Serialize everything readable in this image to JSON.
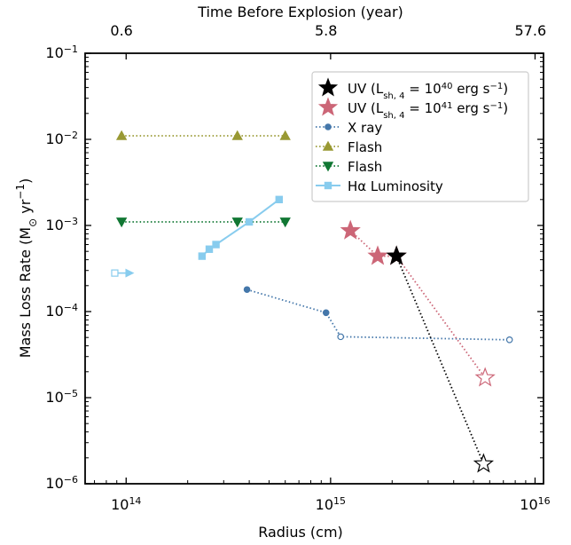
{
  "chart_data": {
    "type": "scatter",
    "title": "",
    "xlabel": "Radius (cm)",
    "ylabel": "Mass Loss Rate (M",
    "ylabel_sun": "⊙",
    "ylabel_unit": " yr",
    "ylabel_exp": "−1",
    "ylabel_close": ")",
    "top_xlabel": "Time Before Explosion (year)",
    "x_scale": "log",
    "y_scale": "log",
    "xlim": [
      63000000000000.0,
      1.1e+16
    ],
    "ylim": [
      1e-06,
      0.1
    ],
    "x_ticks": [
      {
        "value": 100000000000000.0,
        "base": "10",
        "exp": "14"
      },
      {
        "value": 1000000000000000.0,
        "base": "10",
        "exp": "15"
      },
      {
        "value": 1e+16,
        "base": "10",
        "exp": "16"
      }
    ],
    "y_ticks": [
      {
        "value": 0.1,
        "base": "10",
        "exp": "−1"
      },
      {
        "value": 0.01,
        "base": "10",
        "exp": "−2"
      },
      {
        "value": 0.001,
        "base": "10",
        "exp": "−3"
      },
      {
        "value": 0.0001,
        "base": "10",
        "exp": "−4"
      },
      {
        "value": 1e-05,
        "base": "10",
        "exp": "−5"
      },
      {
        "value": 1e-06,
        "base": "10",
        "exp": "−6"
      }
    ],
    "top_ticks": [
      {
        "label": "0.6",
        "x": 95000000000000.0
      },
      {
        "label": "5.8",
        "x": 950000000000000.0
      },
      {
        "label": "57.6",
        "x": 9500000000000000.0
      }
    ],
    "grid": false,
    "legend_position": "top-right",
    "legend": [
      {
        "label": "UV (L",
        "sub": "sh, 4",
        "mid": " = 10",
        "sup": "40",
        "tail": " erg s",
        "tail_sup": "−1",
        "end": ")",
        "marker": "star",
        "color": "#000000",
        "line": "none"
      },
      {
        "label": "UV (L",
        "sub": "sh, 4",
        "mid": " = 10",
        "sup": "41",
        "tail": " erg s",
        "tail_sup": "−1",
        "end": ")",
        "marker": "star",
        "color": "#cc6677",
        "line": "none"
      },
      {
        "label": "X ray",
        "marker": "circle",
        "color": "#4477aa",
        "line": "dotted"
      },
      {
        "label": "Flash",
        "marker": "triangle-up",
        "color": "#999933",
        "line": "dotted"
      },
      {
        "label": "Flash",
        "marker": "triangle-down",
        "color": "#117733",
        "line": "dotted"
      },
      {
        "label": "Hα Luminosity",
        "marker": "square",
        "color": "#88ccee",
        "line": "solid"
      }
    ],
    "series": [
      {
        "name": "Flash",
        "marker": "triangle-up",
        "color": "#999933",
        "line": "dotted",
        "points": [
          {
            "x": 95000000000000.0,
            "y": 0.011
          },
          {
            "x": 350000000000000.0,
            "y": 0.011
          },
          {
            "x": 600000000000000.0,
            "y": 0.011
          }
        ]
      },
      {
        "name": "Flash",
        "marker": "triangle-down",
        "color": "#117733",
        "line": "dotted",
        "points": [
          {
            "x": 95000000000000.0,
            "y": 0.0011
          },
          {
            "x": 350000000000000.0,
            "y": 0.0011
          },
          {
            "x": 600000000000000.0,
            "y": 0.0011
          }
        ]
      },
      {
        "name": "Hα Luminosity",
        "marker": "square",
        "color": "#88ccee",
        "line": "solid",
        "points": [
          {
            "x": 235000000000000.0,
            "y": 0.00044
          },
          {
            "x": 255000000000000.0,
            "y": 0.00053
          },
          {
            "x": 275000000000000.0,
            "y": 0.0006
          },
          {
            "x": 400000000000000.0,
            "y": 0.0011
          },
          {
            "x": 560000000000000.0,
            "y": 0.002
          }
        ]
      },
      {
        "name": "Hα Luminosity limit",
        "marker": "square-open-arrow",
        "color": "#88ccee",
        "line": "none",
        "points": [
          {
            "x": 88000000000000.0,
            "y": 0.00028
          }
        ]
      },
      {
        "name": "X ray",
        "marker": "circle",
        "color": "#4477aa",
        "line": "dotted",
        "points": [
          {
            "x": 390000000000000.0,
            "y": 0.00018
          },
          {
            "x": 950000000000000.0,
            "y": 9.7e-05
          },
          {
            "x": 1120000000000000.0,
            "y": 5.1e-05,
            "open": true
          },
          {
            "x": 7500000000000000.0,
            "y": 4.7e-05,
            "open": true
          }
        ]
      },
      {
        "name": "UV (Lsh,4 = 10^41 erg s^-1)",
        "marker": "star",
        "color": "#cc6677",
        "line": "dotted",
        "points": [
          {
            "x": 1250000000000000.0,
            "y": 0.00087
          },
          {
            "x": 1700000000000000.0,
            "y": 0.00044
          },
          {
            "x": 2100000000000000.0,
            "y": 0.00044
          },
          {
            "x": 5700000000000000.0,
            "y": 1.7e-05,
            "open": true
          }
        ]
      },
      {
        "name": "UV (Lsh,4 = 10^40 erg s^-1)",
        "marker": "star",
        "color": "#000000",
        "line": "dotted",
        "points": [
          {
            "x": 2100000000000000.0,
            "y": 0.00044
          },
          {
            "x": 5600000000000000.0,
            "y": 1.7e-06,
            "open": true
          }
        ]
      }
    ]
  }
}
